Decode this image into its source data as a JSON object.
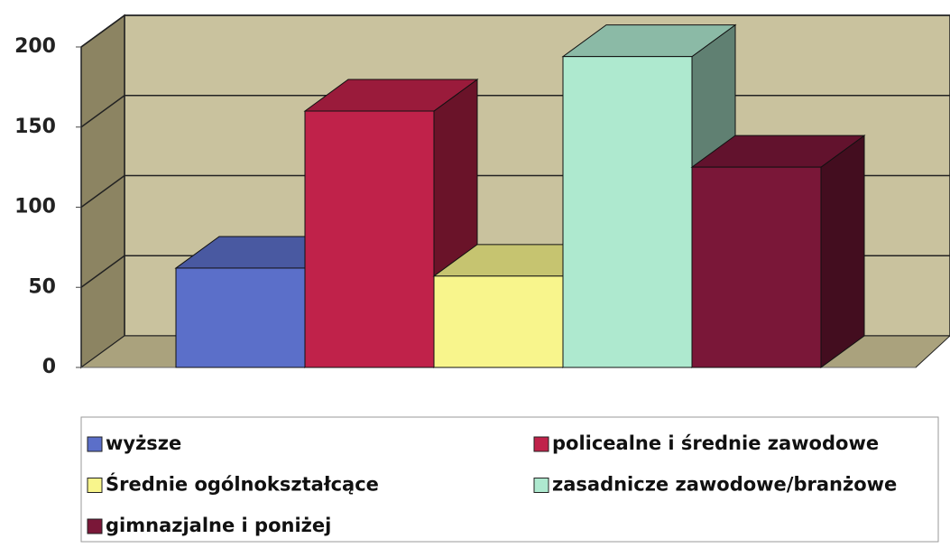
{
  "chart_data": {
    "type": "bar3d",
    "categories": [
      null
    ],
    "series": [
      {
        "name": "wyższe",
        "color": "#5b6fc9",
        "values": [
          62
        ]
      },
      {
        "name": "policealne i średnie zawodowe",
        "color": "#c0224a",
        "values": [
          160
        ]
      },
      {
        "name": "Średnie ogólnokształcące",
        "color": "#f8f58c",
        "values": [
          57
        ]
      },
      {
        "name": "zasadnicze zawodowe/branżowe",
        "color": "#aee9cf",
        "values": [
          194
        ]
      },
      {
        "name": "gimnazjalne i poniżej",
        "color": "#7a1738",
        "values": [
          125
        ]
      }
    ],
    "ylim": [
      0,
      200
    ],
    "yticks": [
      0,
      50,
      100,
      150,
      200
    ],
    "grid": true,
    "legend": "bottom"
  }
}
